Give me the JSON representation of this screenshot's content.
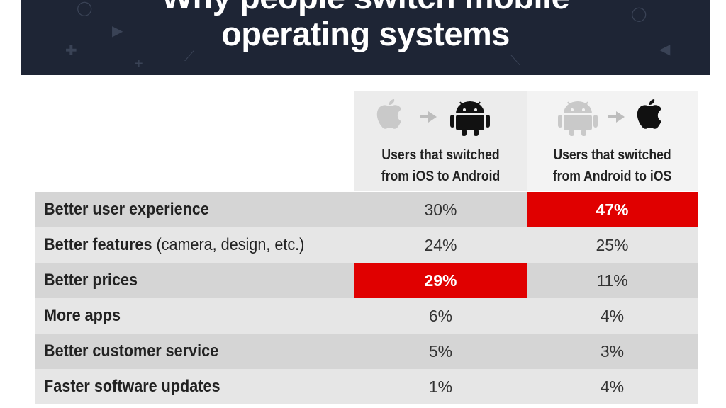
{
  "title": {
    "line1": "Why people switch mobile",
    "line2": "operating systems"
  },
  "columns": [
    {
      "label_line1": "Users that switched",
      "label_line2": "from iOS to Android",
      "from_icon": "apple-icon",
      "to_icon": "android-icon"
    },
    {
      "label_line1": "Users that switched",
      "label_line2": "from Android to iOS",
      "from_icon": "android-icon",
      "to_icon": "apple-icon"
    }
  ],
  "rows": [
    {
      "label": "Better user experience",
      "note": "",
      "ios_to_android": "30%",
      "android_to_ios": "47%"
    },
    {
      "label": "Better features",
      "note": " (camera, design, etc.)",
      "ios_to_android": "24%",
      "android_to_ios": "25%"
    },
    {
      "label": "Better prices",
      "note": "",
      "ios_to_android": "29%",
      "android_to_ios": "11%"
    },
    {
      "label": "More apps",
      "note": "",
      "ios_to_android": "6%",
      "android_to_ios": "4%"
    },
    {
      "label": "Better customer service",
      "note": "",
      "ios_to_android": "5%",
      "android_to_ios": "3%"
    },
    {
      "label": "Faster software updates",
      "note": "",
      "ios_to_android": "1%",
      "android_to_ios": "4%"
    }
  ],
  "colors": {
    "header_bg": "#1e2535",
    "highlight": "#e00000",
    "row_dark": "#d5d5d5",
    "row_light": "#e6e6e6"
  },
  "chart_data": {
    "type": "table",
    "title": "Why people switch mobile operating systems",
    "columns": [
      "Users that switched from iOS to Android",
      "Users that switched from Android to iOS"
    ],
    "categories": [
      "Better user experience",
      "Better features (camera, design, etc.)",
      "Better prices",
      "More apps",
      "Better customer service",
      "Faster software updates"
    ],
    "series": [
      {
        "name": "Users that switched from iOS to Android",
        "values": [
          30,
          24,
          29,
          6,
          5,
          1
        ],
        "highlight_index": 2
      },
      {
        "name": "Users that switched from Android to iOS",
        "values": [
          47,
          25,
          11,
          4,
          3,
          4
        ],
        "highlight_index": 0
      }
    ],
    "unit": "%"
  }
}
